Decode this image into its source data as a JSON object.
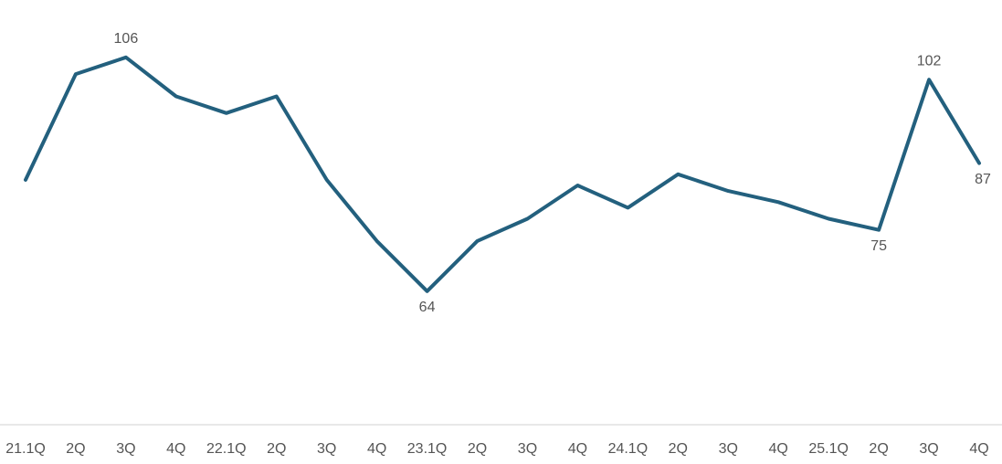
{
  "chart_data": {
    "type": "line",
    "categories": [
      "21.1Q",
      "2Q",
      "3Q",
      "4Q",
      "22.1Q",
      "2Q",
      "3Q",
      "4Q",
      "23.1Q",
      "2Q",
      "3Q",
      "4Q",
      "24.1Q",
      "2Q",
      "3Q",
      "4Q",
      "25.1Q",
      "2Q",
      "3Q",
      "4Q"
    ],
    "values": [
      84,
      103,
      106,
      99,
      96,
      99,
      84,
      73,
      64,
      73,
      77,
      83,
      79,
      85,
      82,
      80,
      77,
      75,
      102,
      87
    ],
    "value_labels": [
      null,
      null,
      "106",
      null,
      null,
      null,
      null,
      null,
      "64",
      null,
      null,
      null,
      null,
      null,
      null,
      null,
      null,
      "75",
      "102",
      "87"
    ],
    "color": "#23607e",
    "ylim": [
      40,
      115
    ]
  }
}
